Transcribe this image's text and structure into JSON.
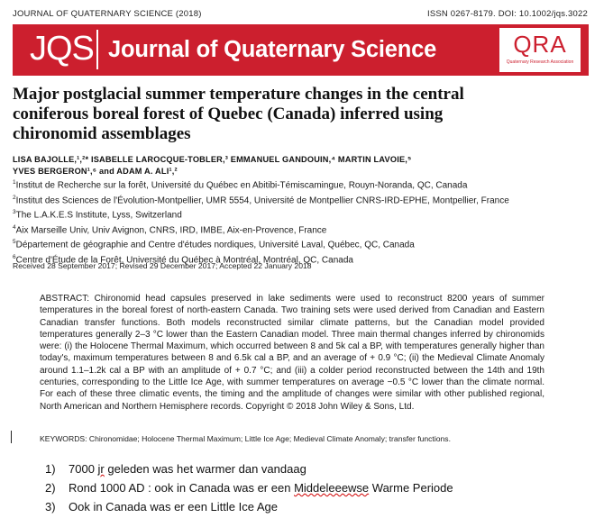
{
  "header": {
    "journal_line": "JOURNAL OF QUATERNARY SCIENCE (2018)",
    "issn_line": "ISSN 0267-8179. DOI: 10.1002/jqs.3022"
  },
  "banner": {
    "abbrev": "JQS",
    "journal_title": "Journal of Quaternary Science",
    "logo_text": "QRA",
    "logo_subtext": "Quaternary Research Association",
    "color": "#cc1f2e"
  },
  "article": {
    "title": "Major postglacial summer temperature changes in the central coniferous boreal forest of Quebec (Canada) inferred using chironomid assemblages",
    "authors_line1": "LISA BAJOLLE,¹,²* ISABELLE LAROCQUE-TOBLER,³ EMMANUEL GANDOUIN,⁴ MARTIN LAVOIE,⁵",
    "authors_line2": "YVES BERGERON¹,⁶ and ADAM A. ALI¹,²",
    "affiliations": [
      {
        "sup": "1",
        "text": "Institut de Recherche sur la forêt, Université du Québec en Abitibi-Témiscamingue, Rouyn-Noranda, QC, Canada"
      },
      {
        "sup": "2",
        "text": "Institut des Sciences de l'Évolution-Montpellier, UMR 5554, Université de Montpellier CNRS-IRD-EPHE, Montpellier, France"
      },
      {
        "sup": "3",
        "text": "The L.A.K.E.S Institute, Lyss, Switzerland"
      },
      {
        "sup": "4",
        "text": "Aix Marseille Univ, Univ Avignon, CNRS, IRD, IMBE, Aix-en-Provence, France"
      },
      {
        "sup": "5",
        "text": "Département de géographie and Centre d'études nordiques, Université Laval, Québec, QC, Canada"
      },
      {
        "sup": "6",
        "text": "Centre d'Étude de la Forêt, Université du Québec à Montréal, Montréal, QC, Canada"
      }
    ],
    "received": "Received 28 September 2017; Revised 29 December 2017; Accepted 22 January 2018",
    "abstract": "ABSTRACT: Chironomid head capsules preserved in lake sediments were used to reconstruct 8200 years of summer temperatures in the boreal forest of north-eastern Canada. Two training sets were used derived from Canadian and Eastern Canadian transfer functions. Both models reconstructed similar climate patterns, but the Canadian model provided temperatures generally 2–3 °C lower than the Eastern Canadian model. Three main thermal changes inferred by chironomids were: (i) the Holocene Thermal Maximum, which occurred between 8 and 5k cal a BP, with temperatures generally higher than today's, maximum temperatures between 8 and 6.5k cal a BP, and an average of + 0.9 °C; (ii) the Medieval Climate Anomaly around 1.1–1.2k cal a BP with an amplitude of + 0.7 °C; and (iii) a colder period reconstructed between the 14th and 19th centuries, corresponding to the Little Ice Age, with summer temperatures on average −0.5 °C lower than the climate normal. For each of these three climatic events, the timing and the amplitude of changes were similar with other published regional, North American and Northern Hemisphere records. Copyright © 2018 John Wiley & Sons, Ltd.",
    "keywords": "KEYWORDS:   Chironomidae; Holocene Thermal Maximum; Little Ice Age; Medieval Climate Anomaly; transfer functions."
  },
  "notes": [
    {
      "num": "1)",
      "pre": "7000 ",
      "flag": "jr",
      "post": " geleden was het warmer dan vandaag"
    },
    {
      "num": "2)",
      "pre": "Rond 1000 AD : ook in Canada was er een ",
      "flag": "Middeleeewse",
      "post": " Warme Periode"
    },
    {
      "num": "3)",
      "pre": "Ook in Canada was er een Little Ice Age",
      "flag": "",
      "post": ""
    }
  ]
}
